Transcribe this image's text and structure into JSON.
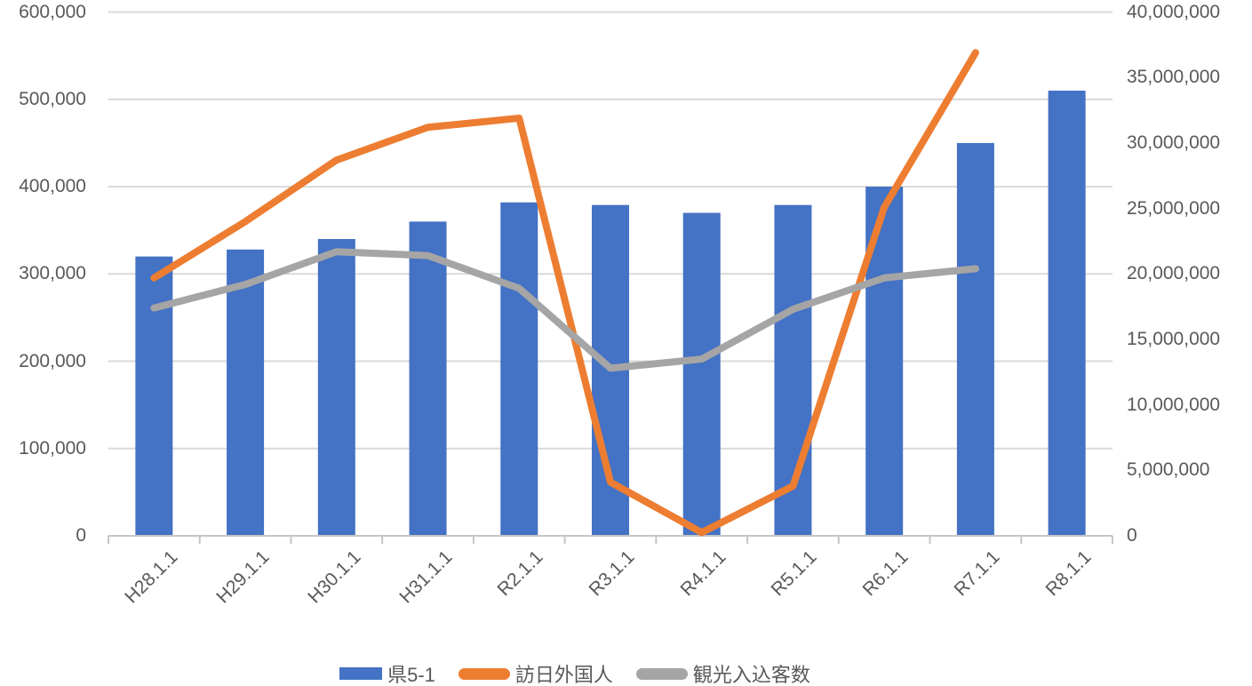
{
  "chart_data": {
    "type": "combo-bar-line",
    "title": "",
    "categories": [
      "H28.1.1",
      "H29.1.1",
      "H30.1.1",
      "H31.1.1",
      "R2.1.1",
      "R3.1.1",
      "R4.1.1",
      "R5.1.1",
      "R6.1.1",
      "R7.1.1",
      "R8.1.1"
    ],
    "series": [
      {
        "name": "県5-1",
        "type": "bar",
        "axis": "left",
        "color": "#4472C4",
        "values": [
          320000,
          328000,
          340000,
          360000,
          382000,
          379000,
          370000,
          379000,
          400000,
          450000,
          510000
        ]
      },
      {
        "name": "訪日外国人",
        "type": "line",
        "axis": "right",
        "color": "#ED7D31",
        "values": [
          19700000,
          24000000,
          28700000,
          31200000,
          31900000,
          4100000,
          250000,
          3800000,
          25100000,
          36900000,
          null
        ]
      },
      {
        "name": "観光入込客数",
        "type": "line",
        "axis": "right",
        "color": "#A5A5A5",
        "values": [
          17400000,
          19200000,
          21700000,
          21400000,
          18900000,
          12800000,
          13500000,
          17300000,
          19700000,
          20400000,
          null
        ]
      }
    ],
    "left_axis": {
      "min": 0,
      "max": 600000,
      "step": 100000,
      "tick_labels": [
        "0",
        "100,000",
        "200,000",
        "300,000",
        "400,000",
        "500,000",
        "600,000"
      ]
    },
    "right_axis": {
      "min": 0,
      "max": 40000000,
      "step": 5000000,
      "tick_labels": [
        "0",
        "5,000,000",
        "10,000,000",
        "15,000,000",
        "20,000,000",
        "25,000,000",
        "30,000,000",
        "35,000,000",
        "40,000,000"
      ]
    },
    "grid": true,
    "legend_position": "bottom",
    "colors": {
      "gridline": "#D9D9D9",
      "axis_line": "#C6C6C6",
      "tick": "#C6C6C6",
      "label_text": "#595959",
      "background": "#FFFFFF"
    }
  }
}
